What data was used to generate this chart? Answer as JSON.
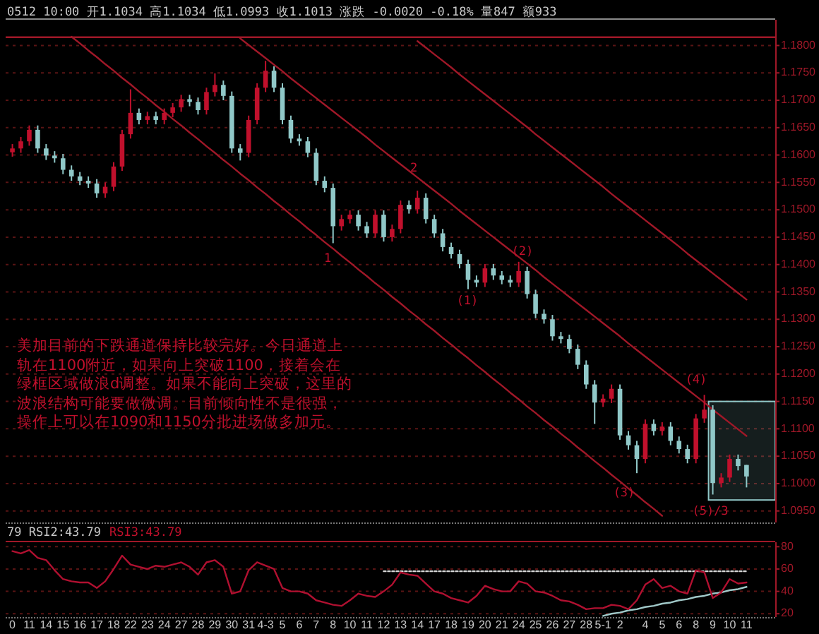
{
  "chart_data": [
    {
      "type": "candlestick",
      "title": "0512 10:00 开1.1034 高1.1034 低1.0993 收1.1013 涨跌 -0.0020 -0.18% 量847 额933",
      "ohlc": [
        [
          1.1605,
          1.162,
          1.1597,
          1.1612
        ],
        [
          1.1612,
          1.1633,
          1.1604,
          1.1625
        ],
        [
          1.1625,
          1.1654,
          1.1617,
          1.1646
        ],
        [
          1.1646,
          1.1654,
          1.1604,
          1.1612
        ],
        [
          1.1612,
          1.162,
          1.1591,
          1.1599
        ],
        [
          1.1599,
          1.1607,
          1.1586,
          1.1594
        ],
        [
          1.1594,
          1.1602,
          1.1565,
          1.1573
        ],
        [
          1.1573,
          1.1581,
          1.1553,
          1.1561
        ],
        [
          1.1561,
          1.1569,
          1.1545,
          1.1553
        ],
        [
          1.1553,
          1.1561,
          1.154,
          1.1548
        ],
        [
          1.1548,
          1.1556,
          1.1522,
          1.153
        ],
        [
          1.153,
          1.155,
          1.1522,
          1.1542
        ],
        [
          1.1542,
          1.1587,
          1.1534,
          1.1579
        ],
        [
          1.1579,
          1.1646,
          1.1571,
          1.1638
        ],
        [
          1.1638,
          1.172,
          1.163,
          1.1677
        ],
        [
          1.1677,
          1.1685,
          1.1656,
          1.1664
        ],
        [
          1.1664,
          1.1679,
          1.1656,
          1.1671
        ],
        [
          1.1671,
          1.1679,
          1.1656,
          1.1664
        ],
        [
          1.1664,
          1.1685,
          1.1656,
          1.1677
        ],
        [
          1.1677,
          1.1695,
          1.1669,
          1.1687
        ],
        [
          1.1687,
          1.171,
          1.1679,
          1.1702
        ],
        [
          1.1702,
          1.171,
          1.1689,
          1.1697
        ],
        [
          1.1697,
          1.1705,
          1.1674,
          1.1682
        ],
        [
          1.1682,
          1.1723,
          1.1674,
          1.1715
        ],
        [
          1.1715,
          1.1749,
          1.1707,
          1.1728
        ],
        [
          1.1728,
          1.1736,
          1.17,
          1.1708
        ],
        [
          1.1708,
          1.1716,
          1.1604,
          1.1612
        ],
        [
          1.1612,
          1.162,
          1.159,
          1.1604
        ],
        [
          1.1604,
          1.1672,
          1.1596,
          1.1664
        ],
        [
          1.1664,
          1.1731,
          1.1656,
          1.1723
        ],
        [
          1.1723,
          1.1772,
          1.1715,
          1.1754
        ],
        [
          1.1754,
          1.1762,
          1.1715,
          1.1723
        ],
        [
          1.1723,
          1.1731,
          1.1656,
          1.1664
        ],
        [
          1.1664,
          1.1672,
          1.1622,
          1.163
        ],
        [
          1.163,
          1.1638,
          1.1617,
          1.1625
        ],
        [
          1.1625,
          1.1633,
          1.1596,
          1.1604
        ],
        [
          1.1604,
          1.1612,
          1.1545,
          1.1553
        ],
        [
          1.1553,
          1.1561,
          1.1532,
          1.154
        ],
        [
          1.154,
          1.1548,
          1.1439,
          1.147
        ],
        [
          1.147,
          1.1491,
          1.1462,
          1.1483
        ],
        [
          1.1483,
          1.1499,
          1.1475,
          1.1491
        ],
        [
          1.1491,
          1.1499,
          1.1462,
          1.147
        ],
        [
          1.147,
          1.1478,
          1.1449,
          1.1457
        ],
        [
          1.1457,
          1.1499,
          1.1449,
          1.1491
        ],
        [
          1.1491,
          1.1499,
          1.1442,
          1.145
        ],
        [
          1.145,
          1.1473,
          1.1442,
          1.1465
        ],
        [
          1.1465,
          1.1517,
          1.1457,
          1.1509
        ],
        [
          1.1509,
          1.1517,
          1.1493,
          1.1501
        ],
        [
          1.1501,
          1.1535,
          1.1493,
          1.1522
        ],
        [
          1.1522,
          1.153,
          1.1475,
          1.1483
        ],
        [
          1.1483,
          1.1491,
          1.1449,
          1.1457
        ],
        [
          1.1457,
          1.1465,
          1.1424,
          1.1432
        ],
        [
          1.1432,
          1.144,
          1.1411,
          1.1419
        ],
        [
          1.1419,
          1.1427,
          1.1393,
          1.1401
        ],
        [
          1.1401,
          1.1409,
          1.1355,
          1.1372
        ],
        [
          1.1372,
          1.138,
          1.1359,
          1.1367
        ],
        [
          1.1367,
          1.1401,
          1.1359,
          1.1393
        ],
        [
          1.1393,
          1.1401,
          1.1372,
          1.138
        ],
        [
          1.138,
          1.1388,
          1.1364,
          1.1372
        ],
        [
          1.1372,
          1.138,
          1.1359,
          1.1367
        ],
        [
          1.1367,
          1.1405,
          1.1359,
          1.1388
        ],
        [
          1.1388,
          1.1396,
          1.1338,
          1.1346
        ],
        [
          1.1346,
          1.1354,
          1.1302,
          1.131
        ],
        [
          1.131,
          1.1318,
          1.1292,
          1.13
        ],
        [
          1.13,
          1.1308,
          1.1261,
          1.1269
        ],
        [
          1.1269,
          1.1277,
          1.1256,
          1.1264
        ],
        [
          1.1264,
          1.1272,
          1.1238,
          1.1246
        ],
        [
          1.1246,
          1.1254,
          1.1209,
          1.1217
        ],
        [
          1.1217,
          1.1225,
          1.1173,
          1.1181
        ],
        [
          1.1181,
          1.1189,
          1.1109,
          1.1148
        ],
        [
          1.1148,
          1.1163,
          1.114,
          1.1155
        ],
        [
          1.1155,
          1.1181,
          1.1147,
          1.1173
        ],
        [
          1.1173,
          1.1181,
          1.108,
          1.1088
        ],
        [
          1.1088,
          1.1096,
          1.1062,
          1.107
        ],
        [
          1.107,
          1.1078,
          1.1019,
          1.1045
        ],
        [
          1.1045,
          1.1117,
          1.1037,
          1.1109
        ],
        [
          1.1109,
          1.1117,
          1.1088,
          1.1096
        ],
        [
          1.1096,
          1.1112,
          1.1088,
          1.1104
        ],
        [
          1.1104,
          1.1112,
          1.107,
          1.1078
        ],
        [
          1.1078,
          1.1086,
          1.1055,
          1.1063
        ],
        [
          1.1063,
          1.1071,
          1.1037,
          1.1045
        ],
        [
          1.1045,
          1.1127,
          1.1037,
          1.1119
        ],
        [
          1.1119,
          1.1162,
          1.1111,
          1.1135
        ],
        [
          1.1135,
          1.1143,
          1.098,
          1.1001
        ],
        [
          1.1001,
          1.1019,
          1.0993,
          1.1011
        ],
        [
          1.1011,
          1.1053,
          1.1003,
          1.1045
        ],
        [
          1.1045,
          1.1053,
          1.1024,
          1.1032
        ],
        [
          1.1034,
          1.1034,
          1.0993,
          1.1013
        ]
      ],
      "colors": [
        "#c0102c",
        "#c0102c",
        "#c0102c",
        "#90c8c8",
        "#90c8c8",
        "#90c8c8",
        "#90c8c8",
        "#90c8c8",
        "#90c8c8",
        "#90c8c8",
        "#90c8c8",
        "#c0102c",
        "#c0102c",
        "#c0102c",
        "#c0102c",
        "#90c8c8",
        "#c0102c",
        "#90c8c8",
        "#c0102c",
        "#c0102c",
        "#c0102c",
        "#90c8c8",
        "#90c8c8",
        "#c0102c",
        "#c0102c",
        "#90c8c8",
        "#90c8c8",
        "#90c8c8",
        "#c0102c",
        "#c0102c",
        "#c0102c",
        "#90c8c8",
        "#90c8c8",
        "#90c8c8",
        "#90c8c8",
        "#90c8c8",
        "#90c8c8",
        "#90c8c8",
        "#90c8c8",
        "#c0102c",
        "#c0102c",
        "#90c8c8",
        "#90c8c8",
        "#c0102c",
        "#90c8c8",
        "#c0102c",
        "#c0102c",
        "#90c8c8",
        "#c0102c",
        "#90c8c8",
        "#90c8c8",
        "#90c8c8",
        "#90c8c8",
        "#90c8c8",
        "#90c8c8",
        "#90c8c8",
        "#c0102c",
        "#90c8c8",
        "#90c8c8",
        "#90c8c8",
        "#c0102c",
        "#90c8c8",
        "#90c8c8",
        "#90c8c8",
        "#90c8c8",
        "#90c8c8",
        "#90c8c8",
        "#90c8c8",
        "#90c8c8",
        "#90c8c8",
        "#c0102c",
        "#c0102c",
        "#90c8c8",
        "#90c8c8",
        "#90c8c8",
        "#c0102c",
        "#90c8c8",
        "#c0102c",
        "#90c8c8",
        "#90c8c8",
        "#90c8c8",
        "#c0102c",
        "#c0102c",
        "#90c8c8",
        "#c0102c",
        "#c0102c",
        "#90c8c8",
        "#90c8c8"
      ],
      "series": [
        {
          "type": "line",
          "color": "#a01828",
          "values": [
            null,
            null,
            null,
            null,
            null,
            null,
            null,
            1.1816,
            1.1804,
            1.1791,
            1.1779,
            1.1766,
            1.1754,
            1.1741,
            1.1729,
            1.1716,
            1.1704,
            1.1691,
            1.1679,
            1.1666,
            1.1654,
            1.1641,
            1.1629,
            1.1616,
            1.1604,
            1.1591,
            1.1579,
            1.1566,
            1.1554,
            1.1541,
            1.1529,
            1.1516,
            1.1504,
            1.1491,
            1.1479,
            1.1466,
            1.1454,
            1.1441,
            1.1429,
            1.1416,
            1.1404,
            1.1391,
            1.1379,
            1.1366,
            1.1354,
            1.1341,
            1.1329,
            1.1316,
            1.1304,
            1.1291,
            1.1279,
            1.1266,
            1.1254,
            1.1241,
            1.1229,
            1.1216,
            1.1204,
            1.1191,
            1.1179,
            1.1166,
            1.1154,
            1.1141,
            1.1129,
            1.1116,
            1.1104,
            1.1091,
            1.1079,
            1.1066,
            1.1054,
            1.1041,
            1.1029,
            1.1016,
            1.1004,
            1.0991,
            1.0979,
            1.0966,
            1.0954,
            1.0941,
            null,
            null,
            null,
            null,
            null,
            null,
            null,
            null,
            null,
            null
          ]
        },
        {
          "type": "line",
          "color": "#a01828",
          "values": [
            null,
            null,
            null,
            null,
            null,
            null,
            null,
            null,
            null,
            null,
            null,
            null,
            null,
            null,
            null,
            null,
            null,
            null,
            null,
            null,
            null,
            null,
            null,
            null,
            null,
            null,
            null,
            1.1813,
            1.1801,
            1.1789,
            1.1777,
            1.1765,
            1.1753,
            1.174,
            1.1728,
            1.1716,
            1.1704,
            1.1692,
            1.168,
            1.1668,
            1.1656,
            1.1644,
            1.1632,
            1.1619,
            1.1607,
            1.1595,
            1.1583,
            1.1571,
            1.1559,
            1.1547,
            1.1535,
            1.1523,
            1.1511,
            1.1498,
            1.1486,
            1.1474,
            1.1462,
            1.145,
            1.1438,
            1.1426,
            1.1414,
            1.1402,
            1.139,
            1.1377,
            1.1365,
            1.1353,
            1.1341,
            1.1329,
            1.1317,
            1.1305,
            1.1293,
            1.1281,
            1.1269,
            1.1256,
            1.1244,
            1.1232,
            1.122,
            1.1208,
            1.1196,
            1.1184,
            1.1172,
            1.116,
            1.1148,
            1.1135,
            1.1123,
            1.1111,
            1.1099,
            1.1087
          ]
        },
        {
          "type": "line",
          "color": "#a01828",
          "values": [
            null,
            null,
            null,
            null,
            null,
            null,
            null,
            null,
            null,
            null,
            null,
            null,
            null,
            null,
            null,
            null,
            null,
            null,
            null,
            null,
            null,
            null,
            null,
            null,
            null,
            null,
            null,
            null,
            null,
            null,
            null,
            null,
            null,
            null,
            null,
            null,
            null,
            null,
            null,
            null,
            null,
            null,
            null,
            null,
            null,
            null,
            null,
            null,
            1.1808,
            1.1796,
            1.1784,
            1.1772,
            1.176,
            1.1747,
            1.1735,
            1.1723,
            1.1711,
            1.1699,
            1.1687,
            1.1675,
            1.1663,
            1.1651,
            1.1638,
            1.1626,
            1.1614,
            1.1602,
            1.159,
            1.1578,
            1.1566,
            1.1554,
            1.1542,
            1.1529,
            1.1517,
            1.1505,
            1.1493,
            1.1481,
            1.1469,
            1.1457,
            1.1445,
            1.1433,
            1.142,
            1.1408,
            1.1396,
            1.1384,
            1.1372,
            1.136,
            1.1348,
            1.1336
          ]
        }
      ],
      "bands": [
        {
          "axis": "y",
          "from": 1.097,
          "to": 1.115,
          "color": "#90c8c8"
        }
      ],
      "ref_lines": [
        {
          "axis": "y",
          "value": 1.1815,
          "color": "#a01828"
        }
      ],
      "ylim": [
        1.0929,
        1.1847
      ],
      "yticks": [
        {
          "value": 1.095,
          "label": "1.0950"
        },
        {
          "value": 1.1,
          "label": "1.1000"
        },
        {
          "value": 1.105,
          "label": "1.1050"
        },
        {
          "value": 1.11,
          "label": "1.1100"
        },
        {
          "value": 1.115,
          "label": "1.1150"
        },
        {
          "value": 1.12,
          "label": "1.1200"
        },
        {
          "value": 1.125,
          "label": "1.1250"
        },
        {
          "value": 1.13,
          "label": "1.1300"
        },
        {
          "value": 1.135,
          "label": "1.1350"
        },
        {
          "value": 1.14,
          "label": "1.1400"
        },
        {
          "value": 1.145,
          "label": "1.1450"
        },
        {
          "value": 1.15,
          "label": "1.1500"
        },
        {
          "value": 1.155,
          "label": "1.1550"
        },
        {
          "value": 1.16,
          "label": "1.1600"
        },
        {
          "value": 1.165,
          "label": "1.1650"
        },
        {
          "value": 1.17,
          "label": "1.1700"
        },
        {
          "value": 1.175,
          "label": "1.1750"
        },
        {
          "value": 1.18,
          "label": "1.1800"
        }
      ],
      "grid": "y",
      "tick_labels": "y",
      "annotations": [
        "1",
        "2",
        "(1)",
        "(2)",
        "(3)",
        "(4)",
        "(5)/3",
        "美加目前的下跌通道保持比较完好。今日通道上轨在1100附近，如果向上突破1100，接着会在绿框区域做浪d调整。如果不能向上突破，这里的波浪结构可能要做微调。目前倾向性不是很强，操作上可以在1090和1150分批进场做多加元。"
      ]
    },
    {
      "type": "line",
      "title": "79 RSI2:43.79",
      "subtitle": "RSI3:43.79",
      "categories": [
        "0",
        null,
        "11",
        null,
        "14",
        null,
        "15",
        null,
        "16",
        null,
        "17",
        null,
        "18",
        null,
        "22",
        null,
        "23",
        null,
        "24",
        null,
        "27",
        null,
        "28",
        null,
        "29",
        null,
        "30",
        null,
        "31",
        null,
        "4-3",
        null,
        "5",
        null,
        "6",
        null,
        "7",
        null,
        "8",
        null,
        "10",
        null,
        "11",
        null,
        "12",
        null,
        "13",
        null,
        "14",
        null,
        "17",
        null,
        "18",
        null,
        "19",
        null,
        "20",
        null,
        "21",
        null,
        "24",
        null,
        "25",
        null,
        "26",
        null,
        "27",
        null,
        "28",
        null,
        "5-1",
        null,
        "2",
        null,
        null,
        "4",
        null,
        "5",
        null,
        "6",
        null,
        "8",
        null,
        "9",
        null,
        "10",
        null,
        "11"
      ],
      "values": [
        76,
        74,
        77,
        70,
        68,
        59,
        51,
        49,
        48,
        48,
        43,
        49,
        60,
        72,
        64,
        62,
        60,
        63,
        62,
        64,
        66,
        62,
        55,
        66,
        68,
        62,
        38,
        40,
        59,
        66,
        63,
        60,
        43,
        40,
        40,
        38,
        32,
        30,
        28,
        27,
        32,
        38,
        36,
        35,
        40,
        46,
        57,
        55,
        54,
        47,
        40,
        38,
        34,
        32,
        30,
        36,
        45,
        42,
        40,
        40,
        49,
        47,
        40,
        39,
        36,
        32,
        31,
        28,
        24,
        25,
        25,
        28,
        27,
        24,
        32,
        46,
        51,
        43,
        45,
        40,
        38,
        59,
        57,
        34,
        39,
        51,
        47,
        48
      ],
      "color": "#b01030",
      "series": [
        {
          "type": "line",
          "color": "#d8d8d8",
          "line_style": "dotted",
          "values": [
            null,
            null,
            null,
            null,
            null,
            null,
            null,
            null,
            null,
            null,
            null,
            null,
            null,
            null,
            null,
            null,
            null,
            null,
            null,
            null,
            null,
            null,
            null,
            null,
            null,
            null,
            null,
            null,
            null,
            null,
            null,
            null,
            null,
            null,
            null,
            null,
            null,
            null,
            null,
            null,
            null,
            null,
            null,
            null,
            58,
            58,
            58,
            58,
            58,
            58,
            58,
            58,
            58,
            58,
            58,
            58,
            58,
            58,
            58,
            58,
            58,
            58,
            58,
            58,
            58,
            58,
            58,
            58,
            58,
            58,
            58,
            58,
            58,
            58,
            58,
            58,
            58,
            58,
            58,
            58,
            58,
            58,
            58,
            58,
            58,
            58,
            58,
            58
          ]
        },
        {
          "type": "line",
          "color": "#a0c8c8",
          "values": [
            null,
            null,
            null,
            null,
            null,
            null,
            null,
            null,
            null,
            null,
            null,
            null,
            null,
            null,
            null,
            null,
            null,
            null,
            null,
            null,
            null,
            null,
            null,
            null,
            null,
            null,
            null,
            null,
            null,
            null,
            null,
            null,
            null,
            null,
            null,
            null,
            null,
            null,
            null,
            null,
            null,
            null,
            null,
            null,
            null,
            null,
            null,
            null,
            null,
            null,
            null,
            null,
            null,
            null,
            null,
            null,
            null,
            null,
            null,
            null,
            null,
            null,
            null,
            null,
            null,
            null,
            null,
            null,
            null,
            null,
            18,
            20,
            21,
            23,
            24,
            26,
            27,
            29,
            30,
            32,
            33,
            35,
            36,
            38,
            39,
            41,
            42,
            44
          ]
        }
      ],
      "ylim": [
        17,
        84
      ],
      "yticks": [
        20,
        40,
        60,
        80
      ],
      "grid": "y"
    }
  ]
}
